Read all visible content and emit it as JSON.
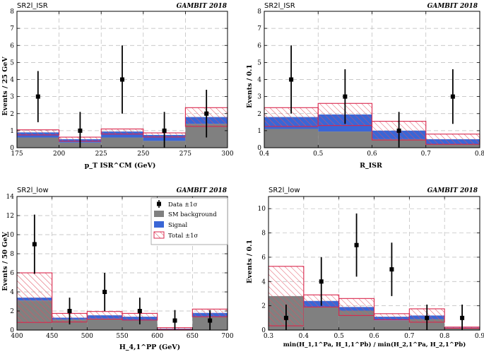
{
  "figure": {
    "source_tag": "GAMBIT 2018"
  },
  "legend": {
    "items": [
      {
        "key": "data",
        "label": "Data ±1σ"
      },
      {
        "key": "bkg",
        "label": "SM background"
      },
      {
        "key": "signal",
        "label": "Signal"
      },
      {
        "key": "total",
        "label": "Total ±1σ"
      }
    ]
  },
  "colors": {
    "background": "#808080",
    "signal": "#3a66d6",
    "total": "#d9274d",
    "hatch": "#e05060",
    "data": "#000000"
  },
  "chart_data": [
    {
      "type": "bar",
      "region": "SR2l_ISR",
      "tag": "GAMBIT 2018",
      "xlabel": "p_T ISR^CM (GeV)",
      "ylabel": "Events / 25 GeV",
      "xlim": [
        175,
        300
      ],
      "ylim": [
        0,
        8
      ],
      "xticks": [
        175,
        200,
        225,
        250,
        275,
        300
      ],
      "yticks": [
        0,
        1,
        2,
        3,
        4,
        5,
        6,
        7,
        8
      ],
      "bin_edges": [
        175,
        200,
        225,
        250,
        275,
        300
      ],
      "series": [
        {
          "name": "SM background",
          "values": [
            0.6,
            0.3,
            0.6,
            0.4,
            1.4
          ]
        },
        {
          "name": "Signal",
          "values": [
            0.3,
            0.2,
            0.35,
            0.35,
            0.4
          ]
        },
        {
          "name": "Total ±1σ",
          "values": [
            0.9,
            0.5,
            0.95,
            0.75,
            1.8
          ],
          "err": [
            0.15,
            0.12,
            0.15,
            0.12,
            0.55
          ]
        }
      ],
      "data_points": {
        "x": [
          187.5,
          212.5,
          237.5,
          262.5,
          287.5
        ],
        "y": [
          3,
          1,
          4,
          1,
          2
        ],
        "err": [
          1.5,
          1.1,
          2.0,
          1.1,
          1.4
        ]
      }
    },
    {
      "type": "bar",
      "region": "SR2l_ISR",
      "tag": "GAMBIT 2018",
      "xlabel": "R_ISR",
      "ylabel": "Events / 0.1",
      "xlim": [
        0.4,
        0.8
      ],
      "ylim": [
        0,
        8
      ],
      "xticks": [
        0.4,
        0.5,
        0.6,
        0.7,
        0.8
      ],
      "yticks": [
        0,
        1,
        2,
        3,
        4,
        5,
        6,
        7,
        8
      ],
      "bin_edges": [
        0.4,
        0.5,
        0.6,
        0.7,
        0.8
      ],
      "series": [
        {
          "name": "SM background",
          "values": [
            1.1,
            0.95,
            0.5,
            0.2
          ]
        },
        {
          "name": "Signal",
          "values": [
            0.7,
            1.0,
            0.5,
            0.3
          ]
        },
        {
          "name": "Total ±1σ",
          "values": [
            1.8,
            1.95,
            1.0,
            0.5
          ],
          "err": [
            0.55,
            0.65,
            0.55,
            0.3
          ]
        }
      ],
      "data_points": {
        "x": [
          0.45,
          0.55,
          0.65,
          0.75
        ],
        "y": [
          4,
          3,
          1,
          3
        ],
        "err": [
          2.0,
          1.6,
          1.1,
          1.6
        ]
      }
    },
    {
      "type": "bar",
      "region": "SR2l_low",
      "tag": "GAMBIT 2018",
      "xlabel": "H_4,1^PP (GeV)",
      "ylabel": "Events / 50 GeV",
      "xlim": [
        400,
        700
      ],
      "ylim": [
        0,
        14
      ],
      "xticks": [
        400,
        450,
        500,
        550,
        600,
        650,
        700
      ],
      "yticks": [
        0,
        2,
        4,
        6,
        8,
        10,
        12,
        14
      ],
      "bin_edges": [
        400,
        450,
        500,
        550,
        600,
        650,
        700
      ],
      "series": [
        {
          "name": "SM background",
          "values": [
            3.1,
            1.1,
            1.2,
            1.0,
            0.1,
            1.4
          ]
        },
        {
          "name": "Signal",
          "values": [
            0.3,
            0.2,
            0.35,
            0.4,
            0.05,
            0.4
          ]
        },
        {
          "name": "Total ±1σ",
          "values": [
            3.4,
            1.3,
            1.55,
            1.4,
            0.15,
            1.8
          ],
          "err": [
            2.6,
            0.45,
            0.4,
            0.35,
            0.1,
            0.4
          ]
        }
      ],
      "data_points": {
        "x": [
          425,
          475,
          525,
          575,
          625,
          675
        ],
        "y": [
          9,
          2,
          4,
          2,
          1,
          1
        ],
        "err": [
          3.1,
          1.4,
          2.0,
          1.4,
          1.1,
          1.1
        ]
      }
    },
    {
      "type": "bar",
      "region": "SR2l_low",
      "tag": "GAMBIT 2018",
      "xlabel": "min(H_1,1^Pa, H_1,1^Pb) / min(H_2,1^Pa, H_2,1^Pb)",
      "ylabel": "Events / 0.1",
      "xlim": [
        0.3,
        0.9
      ],
      "ylim": [
        0,
        11
      ],
      "xticks": [
        0.3,
        0.4,
        0.5,
        0.6,
        0.7,
        0.8,
        0.9
      ],
      "yticks": [
        0,
        2,
        4,
        6,
        8,
        10
      ],
      "bin_edges": [
        0.3,
        0.4,
        0.5,
        0.6,
        0.7,
        0.8,
        0.9
      ],
      "series": [
        {
          "name": "SM background",
          "values": [
            2.8,
            1.9,
            1.6,
            0.8,
            0.9,
            0.15
          ]
        },
        {
          "name": "Signal",
          "values": [
            0.0,
            0.5,
            0.3,
            0.3,
            0.3,
            0.05
          ]
        },
        {
          "name": "Total ±1σ",
          "values": [
            2.8,
            2.4,
            1.9,
            1.1,
            1.2,
            0.2
          ],
          "err": [
            2.45,
            0.5,
            0.7,
            0.25,
            0.55,
            0.05
          ]
        }
      ],
      "data_points": {
        "x": [
          0.35,
          0.45,
          0.55,
          0.65,
          0.75,
          0.85
        ],
        "y": [
          1,
          4,
          7,
          5,
          1,
          1
        ],
        "err": [
          1.1,
          2.0,
          2.6,
          2.2,
          1.1,
          1.1
        ]
      }
    }
  ]
}
